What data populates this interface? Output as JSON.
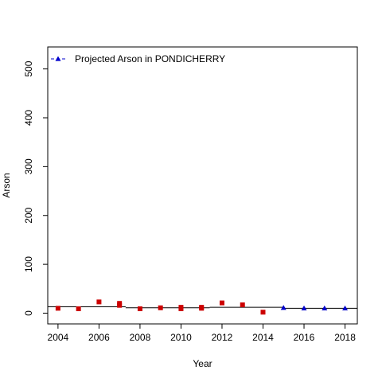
{
  "chart_data": {
    "type": "scatter",
    "xlabel": "Year",
    "ylabel": "Arson",
    "xlim": [
      2003.5,
      2018.6
    ],
    "ylim": [
      -22,
      545
    ],
    "xticks": [
      2004,
      2006,
      2008,
      2010,
      2012,
      2014,
      2016,
      2018
    ],
    "yticks": [
      0,
      100,
      200,
      300,
      400,
      500
    ],
    "grid": false,
    "legend": {
      "position": "top-left",
      "entries": [
        {
          "label": "Projected Arson  in  PONDICHERRY",
          "color": "#0000cc",
          "marker": "triangle",
          "line": "dashed"
        }
      ]
    },
    "series": [
      {
        "marker": "square",
        "color": "#cc0000",
        "x": [
          2004,
          2005,
          2006,
          2007,
          2007,
          2008,
          2009,
          2010,
          2010,
          2011,
          2011,
          2012,
          2013,
          2014
        ],
        "y": [
          10,
          9,
          23,
          20,
          16,
          9,
          11,
          12,
          9,
          12,
          10,
          21,
          17,
          2
        ]
      },
      {
        "name": "Projected Arson  in  PONDICHERRY",
        "marker": "triangle",
        "color": "#0000cc",
        "x": [
          2015,
          2016,
          2017,
          2018
        ],
        "y": [
          11,
          10,
          10,
          10
        ]
      }
    ],
    "fit_lines": [
      {
        "x": [
          2003.5,
          2007.3
        ],
        "y": [
          13,
          13
        ]
      },
      {
        "x": [
          2007.3,
          2011.4
        ],
        "y": [
          11,
          11
        ]
      },
      {
        "x": [
          2011.4,
          2015.0
        ],
        "y": [
          12,
          12
        ]
      },
      {
        "x": [
          2015.0,
          2018.6
        ],
        "y": [
          10,
          10
        ]
      }
    ]
  }
}
